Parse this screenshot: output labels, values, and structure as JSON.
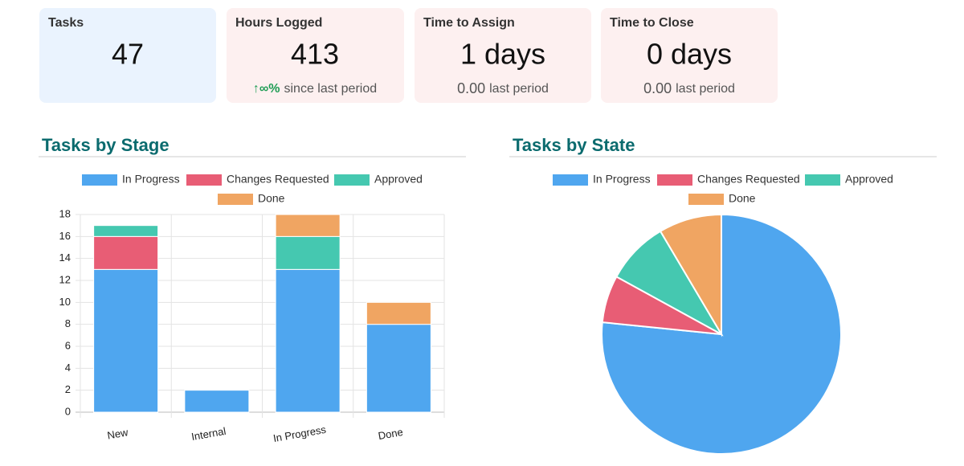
{
  "cards": [
    {
      "title": "Tasks",
      "value": "47"
    },
    {
      "title": "Hours Logged",
      "value": "413",
      "change": "↑∞%",
      "change_label": "since last period"
    },
    {
      "title": "Time to Assign",
      "value": "1 days",
      "previous": "0.00",
      "previous_label": "last period"
    },
    {
      "title": "Time to Close",
      "value": "0 days",
      "previous": "0.00",
      "previous_label": "last period"
    }
  ],
  "chart_data": [
    {
      "type": "bar",
      "stacked": true,
      "title": "Tasks by Stage",
      "categories": [
        "New",
        "Internal",
        "In Progress",
        "Done"
      ],
      "series": [
        {
          "name": "In Progress",
          "color": "#4fa6ef",
          "values": [
            13,
            2,
            13,
            8
          ]
        },
        {
          "name": "Changes Requested",
          "color": "#e85d75",
          "values": [
            3,
            0,
            0,
            0
          ]
        },
        {
          "name": "Approved",
          "color": "#45c8b0",
          "values": [
            1,
            0,
            3,
            0
          ]
        },
        {
          "name": "Done",
          "color": "#f0a562",
          "values": [
            0,
            0,
            2,
            2
          ]
        }
      ],
      "ylim": [
        0,
        18
      ],
      "yticks": [
        0,
        2,
        4,
        6,
        8,
        10,
        12,
        14,
        16,
        18
      ],
      "grid": true
    },
    {
      "type": "pie",
      "title": "Tasks by State",
      "categories": [
        "In Progress",
        "Changes Requested",
        "Approved",
        "Done"
      ],
      "values": [
        36,
        3,
        4,
        4
      ],
      "colors": [
        "#4fa6ef",
        "#e85d75",
        "#45c8b0",
        "#f0a562"
      ]
    }
  ]
}
